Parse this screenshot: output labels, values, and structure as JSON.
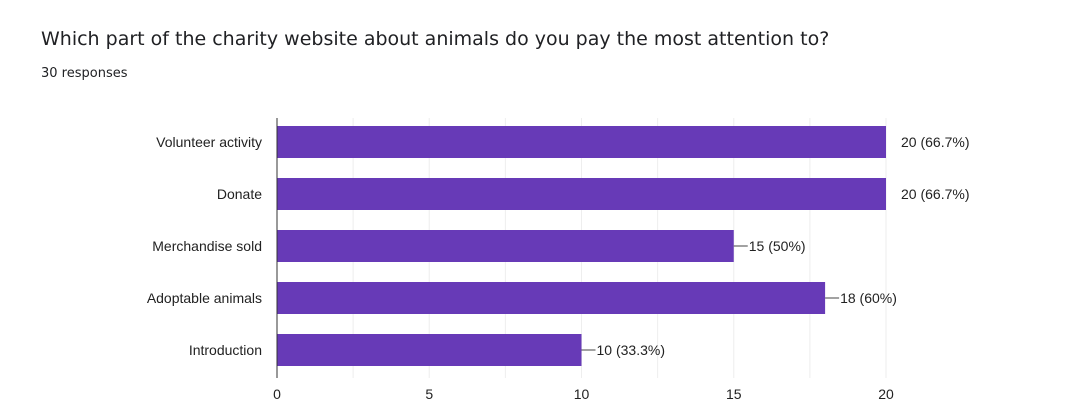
{
  "header": {
    "title": "Which part of the charity website about animals do you pay the most attention to?",
    "subtitle": "30 responses"
  },
  "colors": {
    "bar": "#673ab7",
    "grid": "#eeeeee",
    "axis": "#333333",
    "leader": "#444444"
  },
  "chart_data": {
    "type": "bar",
    "orientation": "horizontal",
    "categories": [
      "Volunteer activity",
      "Donate",
      "Merchandise sold",
      "Adoptable animals",
      "Introduction"
    ],
    "values": [
      20,
      20,
      15,
      18,
      10
    ],
    "data_labels": [
      "20 (66.7%)",
      "20 (66.7%)",
      "15 (50%)",
      "18 (60%)",
      "10 (33.3%)"
    ],
    "xlim": [
      0,
      20
    ],
    "xticks": [
      0,
      5,
      10,
      15,
      20
    ],
    "grid": true,
    "legend": "none"
  }
}
